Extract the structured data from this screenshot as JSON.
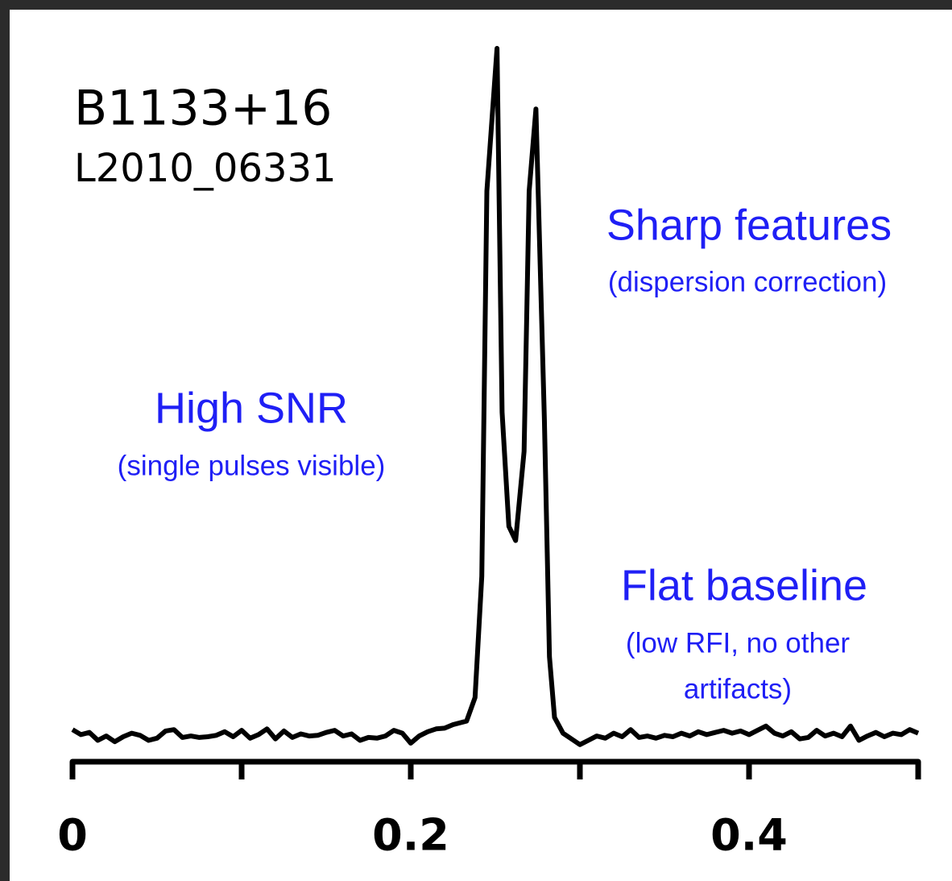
{
  "chart_data": {
    "type": "line",
    "title": "B1133+16",
    "subtitle": "L2010_06331",
    "annotations": {
      "sharp": "Sharp features",
      "sharp_note": "(dispersion correction)",
      "snr": "High SNR",
      "snr_note": "(single pulses visible)",
      "baseline": "Flat baseline",
      "baseline_note_1": "(low RFI, no other",
      "baseline_note_2": "artifacts)"
    },
    "xlim": [
      0,
      0.5
    ],
    "xticks": [
      0,
      0.2,
      0.4
    ],
    "xticks_minor": [
      0.1,
      0.3,
      0.5
    ],
    "ylim": [
      0,
      1
    ],
    "color": "#000000",
    "x": [
      0,
      0.005,
      0.01,
      0.015,
      0.02,
      0.025,
      0.03,
      0.035,
      0.04,
      0.045,
      0.05,
      0.055,
      0.06,
      0.065,
      0.07,
      0.075,
      0.08,
      0.085,
      0.09,
      0.095,
      0.1,
      0.105,
      0.11,
      0.115,
      0.12,
      0.125,
      0.13,
      0.135,
      0.14,
      0.145,
      0.15,
      0.155,
      0.16,
      0.165,
      0.17,
      0.175,
      0.18,
      0.185,
      0.19,
      0.195,
      0.2,
      0.205,
      0.21,
      0.215,
      0.22,
      0.225,
      0.233,
      0.238,
      0.242,
      0.245,
      0.251,
      0.254,
      0.258,
      0.262,
      0.267,
      0.27,
      0.274,
      0.279,
      0.282,
      0.285,
      0.29,
      0.295,
      0.3,
      0.305,
      0.31,
      0.315,
      0.32,
      0.325,
      0.33,
      0.335,
      0.34,
      0.345,
      0.35,
      0.355,
      0.36,
      0.365,
      0.37,
      0.375,
      0.38,
      0.385,
      0.39,
      0.395,
      0.4,
      0.405,
      0.41,
      0.415,
      0.42,
      0.425,
      0.43,
      0.435,
      0.44,
      0.445,
      0.45,
      0.455,
      0.46,
      0.465,
      0.47,
      0.475,
      0.48,
      0.485,
      0.49,
      0.495,
      0.5
    ],
    "values": [
      0.045,
      0.038,
      0.041,
      0.03,
      0.036,
      0.028,
      0.035,
      0.04,
      0.037,
      0.03,
      0.033,
      0.043,
      0.045,
      0.034,
      0.036,
      0.034,
      0.035,
      0.037,
      0.042,
      0.035,
      0.044,
      0.033,
      0.038,
      0.046,
      0.032,
      0.043,
      0.034,
      0.039,
      0.036,
      0.037,
      0.041,
      0.044,
      0.036,
      0.039,
      0.03,
      0.034,
      0.033,
      0.036,
      0.044,
      0.04,
      0.026,
      0.036,
      0.042,
      0.046,
      0.047,
      0.052,
      0.057,
      0.09,
      0.26,
      0.8,
      1.0,
      0.49,
      0.33,
      0.31,
      0.435,
      0.8,
      0.915,
      0.48,
      0.147,
      0.062,
      0.04,
      0.032,
      0.024,
      0.03,
      0.036,
      0.033,
      0.04,
      0.035,
      0.045,
      0.034,
      0.036,
      0.033,
      0.037,
      0.035,
      0.04,
      0.036,
      0.042,
      0.038,
      0.041,
      0.044,
      0.04,
      0.043,
      0.038,
      0.044,
      0.05,
      0.04,
      0.036,
      0.042,
      0.032,
      0.034,
      0.044,
      0.036,
      0.04,
      0.035,
      0.05,
      0.03,
      0.036,
      0.041,
      0.035,
      0.04,
      0.038,
      0.045,
      0.04
    ]
  }
}
